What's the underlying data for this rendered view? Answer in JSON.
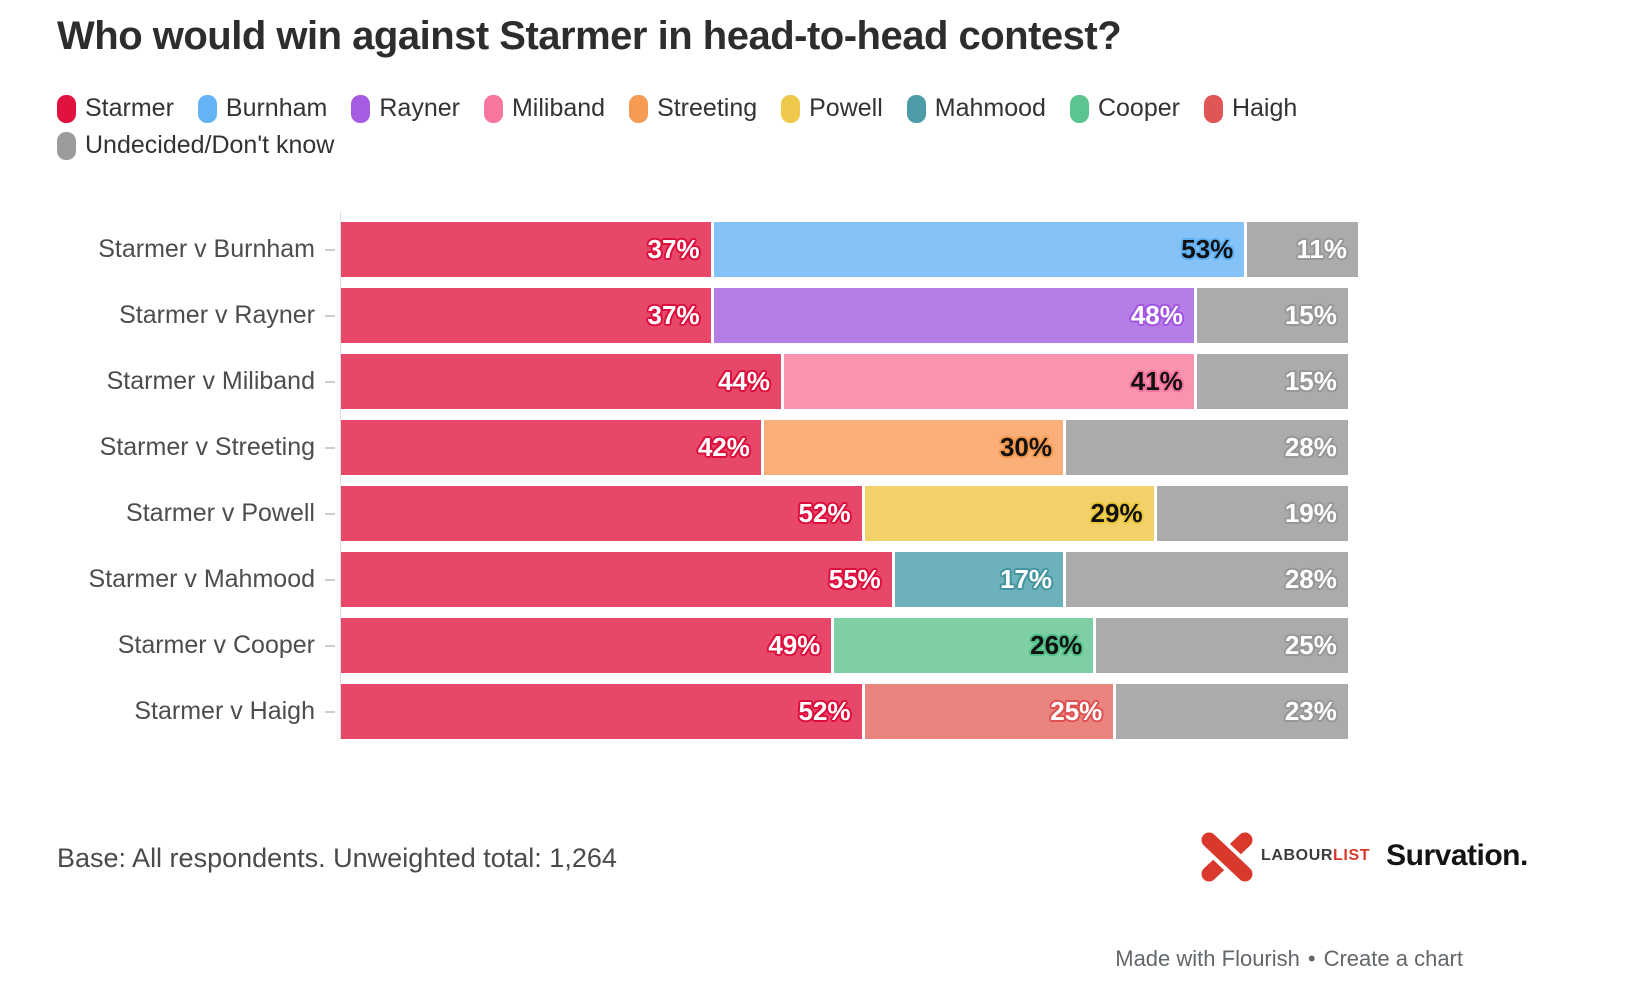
{
  "title": "Who would win against Starmer in head-to-head contest?",
  "legend_items": [
    "Starmer",
    "Burnham",
    "Rayner",
    "Miliband",
    "Streeting",
    "Powell",
    "Mahmood",
    "Cooper",
    "Haigh",
    "Undecided/Don't know"
  ],
  "palette": {
    "Starmer": {
      "legend": "#e01240",
      "bar": "#e7486a",
      "halo": "#dc0f3c",
      "text": "#ffffff"
    },
    "Burnham": {
      "legend": "#64b4f5",
      "bar": "#85c2f7",
      "halo": "#5fb1f4",
      "text": "#111111"
    },
    "Rayner": {
      "legend": "#a65ce2",
      "bar": "#b57ee6",
      "halo": "#a153e2",
      "text": "#ffffff"
    },
    "Miliband": {
      "legend": "#f7779f",
      "bar": "#f994af",
      "halo": "#f7739e",
      "text": "#111111"
    },
    "Streeting": {
      "legend": "#f59b54",
      "bar": "#f9af77",
      "halo": "#f4984f",
      "text": "#111111"
    },
    "Powell": {
      "legend": "#eec94c",
      "bar": "#f2d268",
      "halo": "#eac63f",
      "text": "#111111"
    },
    "Mahmood": {
      "legend": "#4d9ba9",
      "bar": "#6db1bc",
      "halo": "#44949f",
      "text": "#ffffff"
    },
    "Cooper": {
      "legend": "#5bc48f",
      "bar": "#7ed0a4",
      "halo": "#52bf88",
      "text": "#111111"
    },
    "Haigh": {
      "legend": "#e05656",
      "bar": "#eb837f",
      "halo": "#dd5151",
      "text": "#ffffff"
    },
    "Undecided/Don't know": {
      "legend": "#9c9c9c",
      "bar": "#ababab",
      "halo": "#979797",
      "text": "#ffffff"
    }
  },
  "chart_data": {
    "type": "bar",
    "stacked": true,
    "orientation": "horizontal",
    "unit": "%",
    "x_max": 101,
    "grid": false,
    "legend_position": "top",
    "categories": [
      "Starmer v Burnham",
      "Starmer v Rayner",
      "Starmer v Miliband",
      "Starmer v Streeting",
      "Starmer v Powell",
      "Starmer v Mahmood",
      "Starmer v Cooper",
      "Starmer v Haigh"
    ],
    "rows": [
      {
        "category": "Starmer v Burnham",
        "segments": [
          {
            "name": "Starmer",
            "value": 37
          },
          {
            "name": "Burnham",
            "value": 53
          },
          {
            "name": "Undecided/Don't know",
            "value": 11
          }
        ]
      },
      {
        "category": "Starmer v Rayner",
        "segments": [
          {
            "name": "Starmer",
            "value": 37
          },
          {
            "name": "Rayner",
            "value": 48
          },
          {
            "name": "Undecided/Don't know",
            "value": 15
          }
        ]
      },
      {
        "category": "Starmer v Miliband",
        "segments": [
          {
            "name": "Starmer",
            "value": 44
          },
          {
            "name": "Miliband",
            "value": 41
          },
          {
            "name": "Undecided/Don't know",
            "value": 15
          }
        ]
      },
      {
        "category": "Starmer v Streeting",
        "segments": [
          {
            "name": "Starmer",
            "value": 42
          },
          {
            "name": "Streeting",
            "value": 30
          },
          {
            "name": "Undecided/Don't know",
            "value": 28
          }
        ]
      },
      {
        "category": "Starmer v Powell",
        "segments": [
          {
            "name": "Starmer",
            "value": 52
          },
          {
            "name": "Powell",
            "value": 29
          },
          {
            "name": "Undecided/Don't know",
            "value": 19
          }
        ]
      },
      {
        "category": "Starmer v Mahmood",
        "segments": [
          {
            "name": "Starmer",
            "value": 55
          },
          {
            "name": "Mahmood",
            "value": 17
          },
          {
            "name": "Undecided/Don't know",
            "value": 28
          }
        ]
      },
      {
        "category": "Starmer v Cooper",
        "segments": [
          {
            "name": "Starmer",
            "value": 49
          },
          {
            "name": "Cooper",
            "value": 26
          },
          {
            "name": "Undecided/Don't know",
            "value": 25
          }
        ]
      },
      {
        "category": "Starmer v Haigh",
        "segments": [
          {
            "name": "Starmer",
            "value": 52
          },
          {
            "name": "Haigh",
            "value": 25
          },
          {
            "name": "Undecided/Don't know",
            "value": 23
          }
        ]
      }
    ]
  },
  "footer": {
    "base_note": "Base: All respondents. Unweighted total: 1,264",
    "logo_labourlist_part1": "LABOUR",
    "logo_labourlist_part2": "LIST",
    "logo_survation": "Survation."
  },
  "credit": {
    "made_with": "Made with Flourish",
    "separator": "•",
    "create": "Create a chart"
  }
}
